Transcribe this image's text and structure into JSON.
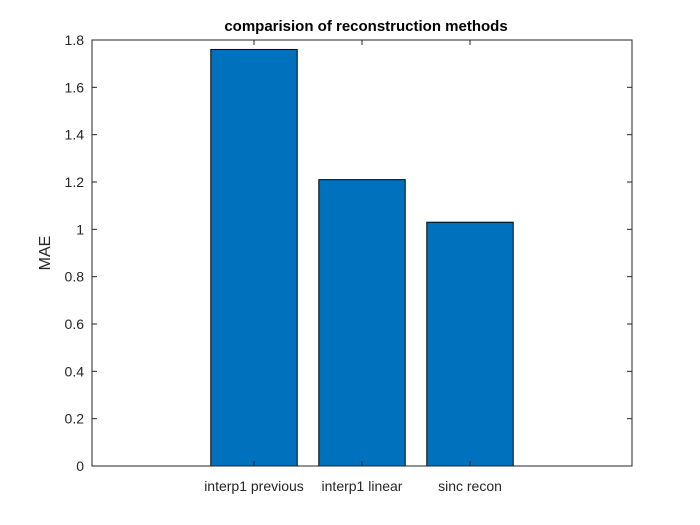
{
  "chart_data": {
    "type": "bar",
    "title": "comparision of reconstruction methods",
    "xlabel": "",
    "ylabel": "MAE",
    "categories": [
      "interp1 previous",
      "interp1 linear",
      "sinc recon"
    ],
    "values": [
      1.76,
      1.21,
      1.03
    ],
    "ylim": [
      0,
      1.8
    ],
    "yticks": [
      0,
      0.2,
      0.4,
      0.6,
      0.8,
      1,
      1.2,
      1.4,
      1.6,
      1.8
    ],
    "ytick_labels": [
      "0",
      "0.2",
      "0.4",
      "0.6",
      "0.8",
      "1",
      "1.2",
      "1.4",
      "1.6",
      "1.8"
    ],
    "bar_color": "#0072BD",
    "grid": false,
    "legend": "none"
  }
}
